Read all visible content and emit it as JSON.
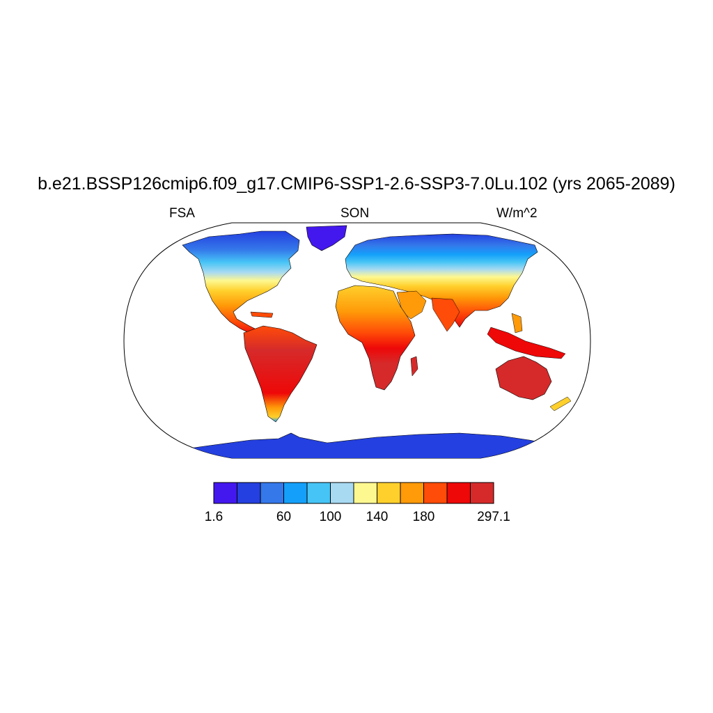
{
  "title": "b.e21.BSSP126cmip6.f09_g17.CMIP6-SSP1-2.6-SSP3-7.0Lu.102 (yrs 2065-2089)",
  "left_label": "FSA",
  "center_label": "SON",
  "right_label": "W/m^2",
  "colorbar": {
    "colors": [
      "#4318ee",
      "#2440e0",
      "#3478ea",
      "#14a0fa",
      "#46c4f6",
      "#a8daf2",
      "#fef890",
      "#ffd02c",
      "#ff9a08",
      "#ff4c08",
      "#ee0808",
      "#d62a2a"
    ],
    "labels": [
      {
        "text": "1.6",
        "boundary": 0
      },
      {
        "text": "60",
        "boundary": 3
      },
      {
        "text": "100",
        "boundary": 5
      },
      {
        "text": "140",
        "boundary": 7
      },
      {
        "text": "180",
        "boundary": 9
      },
      {
        "text": "297.1",
        "boundary": 12
      }
    ]
  }
}
